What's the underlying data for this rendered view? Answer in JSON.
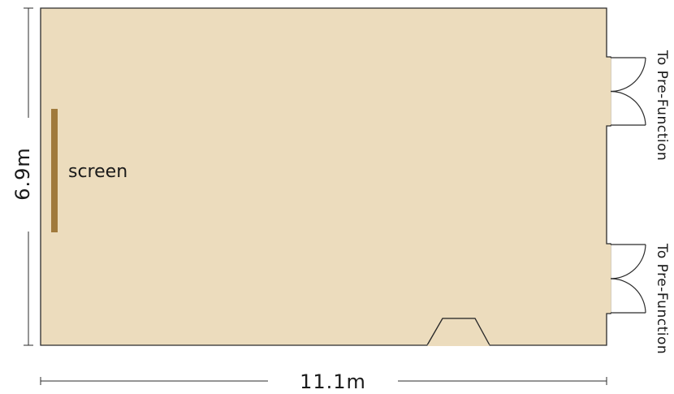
{
  "colors": {
    "room_fill": "#ecdcbd",
    "wall": "#2b2b2b",
    "screen": "#a07a3c",
    "dimension_line": "#2b2b2b"
  },
  "labels": {
    "height_dimension": "6.9m",
    "width_dimension": "11.1m",
    "screen": "screen",
    "door_top": "To Pre-Function",
    "door_bottom": "To Pre-Function"
  }
}
